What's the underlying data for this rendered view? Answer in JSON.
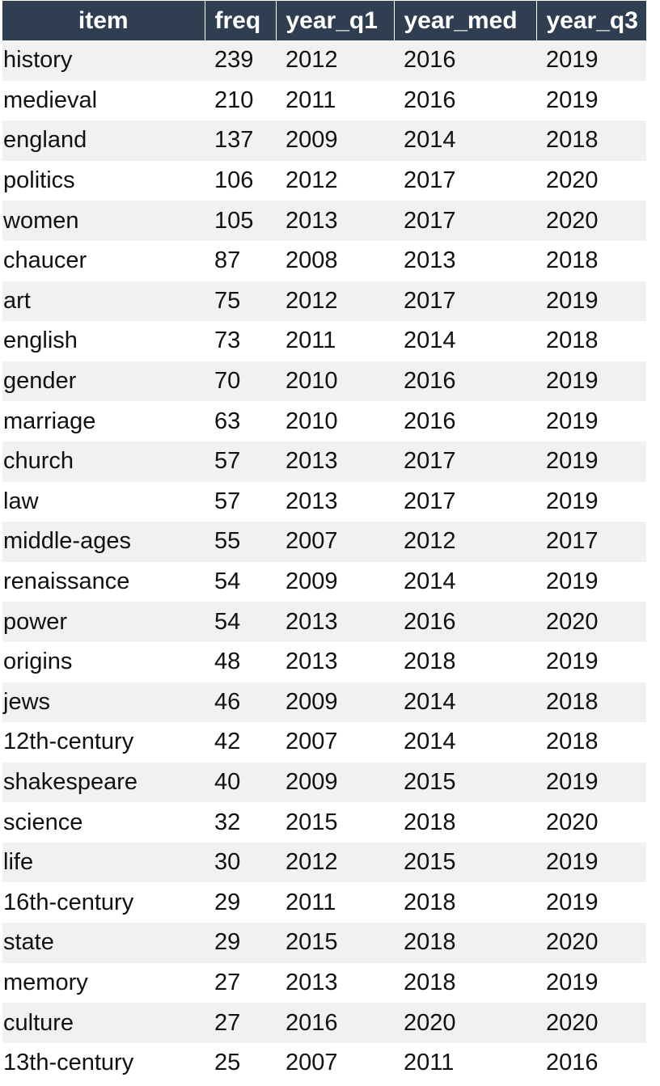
{
  "table": {
    "columns": [
      "item",
      "freq",
      "year_q1",
      "year_med",
      "year_q3"
    ],
    "rows": [
      {
        "item": "history",
        "freq": "239",
        "year_q1": "2012",
        "year_med": "2016",
        "year_q3": "2019"
      },
      {
        "item": "medieval",
        "freq": "210",
        "year_q1": "2011",
        "year_med": "2016",
        "year_q3": "2019"
      },
      {
        "item": "england",
        "freq": "137",
        "year_q1": "2009",
        "year_med": "2014",
        "year_q3": "2018"
      },
      {
        "item": "politics",
        "freq": "106",
        "year_q1": "2012",
        "year_med": "2017",
        "year_q3": "2020"
      },
      {
        "item": "women",
        "freq": "105",
        "year_q1": "2013",
        "year_med": "2017",
        "year_q3": "2020"
      },
      {
        "item": "chaucer",
        "freq": "87",
        "year_q1": "2008",
        "year_med": "2013",
        "year_q3": "2018"
      },
      {
        "item": "art",
        "freq": "75",
        "year_q1": "2012",
        "year_med": "2017",
        "year_q3": "2019"
      },
      {
        "item": "english",
        "freq": "73",
        "year_q1": "2011",
        "year_med": "2014",
        "year_q3": "2018"
      },
      {
        "item": "gender",
        "freq": "70",
        "year_q1": "2010",
        "year_med": "2016",
        "year_q3": "2019"
      },
      {
        "item": "marriage",
        "freq": "63",
        "year_q1": "2010",
        "year_med": "2016",
        "year_q3": "2019"
      },
      {
        "item": "church",
        "freq": "57",
        "year_q1": "2013",
        "year_med": "2017",
        "year_q3": "2019"
      },
      {
        "item": "law",
        "freq": "57",
        "year_q1": "2013",
        "year_med": "2017",
        "year_q3": "2019"
      },
      {
        "item": "middle-ages",
        "freq": "55",
        "year_q1": "2007",
        "year_med": "2012",
        "year_q3": "2017"
      },
      {
        "item": "renaissance",
        "freq": "54",
        "year_q1": "2009",
        "year_med": "2014",
        "year_q3": "2019"
      },
      {
        "item": "power",
        "freq": "54",
        "year_q1": "2013",
        "year_med": "2016",
        "year_q3": "2020"
      },
      {
        "item": "origins",
        "freq": "48",
        "year_q1": "2013",
        "year_med": "2018",
        "year_q3": "2019"
      },
      {
        "item": "jews",
        "freq": "46",
        "year_q1": "2009",
        "year_med": "2014",
        "year_q3": "2018"
      },
      {
        "item": "12th-century",
        "freq": "42",
        "year_q1": "2007",
        "year_med": "2014",
        "year_q3": "2018"
      },
      {
        "item": "shakespeare",
        "freq": "40",
        "year_q1": "2009",
        "year_med": "2015",
        "year_q3": "2019"
      },
      {
        "item": "science",
        "freq": "32",
        "year_q1": "2015",
        "year_med": "2018",
        "year_q3": "2020"
      },
      {
        "item": "life",
        "freq": "30",
        "year_q1": "2012",
        "year_med": "2015",
        "year_q3": "2019"
      },
      {
        "item": "16th-century",
        "freq": "29",
        "year_q1": "2011",
        "year_med": "2018",
        "year_q3": "2019"
      },
      {
        "item": "state",
        "freq": "29",
        "year_q1": "2015",
        "year_med": "2018",
        "year_q3": "2020"
      },
      {
        "item": "memory",
        "freq": "27",
        "year_q1": "2013",
        "year_med": "2018",
        "year_q3": "2019"
      },
      {
        "item": "culture",
        "freq": "27",
        "year_q1": "2016",
        "year_med": "2020",
        "year_q3": "2020"
      },
      {
        "item": "13th-century",
        "freq": "25",
        "year_q1": "2007",
        "year_med": "2011",
        "year_q3": "2016"
      }
    ]
  },
  "colors": {
    "header_background": "#2f3e50",
    "header_text": "#ffffff",
    "stripe_row": "#f1f1f1",
    "plain_row": "#ffffff"
  }
}
